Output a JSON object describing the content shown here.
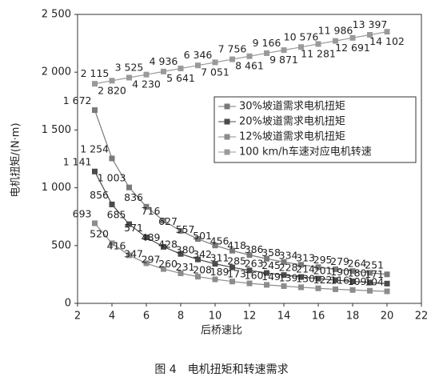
{
  "chart_data": {
    "type": "line",
    "caption": "图 4　电机扭矩和转速需求",
    "x_label": "后桥速比",
    "y_label": "电机扭矩/(N·m)",
    "x": [
      3,
      4,
      5,
      6,
      7,
      8,
      9,
      10,
      11,
      12,
      13,
      14,
      15,
      16,
      17,
      18,
      19,
      20
    ],
    "xlim": [
      2,
      22
    ],
    "xticks": [
      2,
      4,
      6,
      8,
      10,
      12,
      14,
      16,
      18,
      20,
      22
    ],
    "ylim": [
      0,
      2500
    ],
    "yticks": [
      0,
      500,
      {
        "value": 1000,
        "label": "1 000"
      },
      {
        "value": 1500,
        "label": "1 500"
      },
      {
        "value": 2000,
        "label": "2 000"
      },
      {
        "value": 2500,
        "label": "2 500"
      }
    ],
    "y2lim": [
      -48500,
      18100
    ],
    "legend_position": "right",
    "series": [
      {
        "name": "30%坡道需求电机扭矩",
        "color": "#7a7a7a",
        "values": [
          1672,
          1254,
          1003,
          836,
          716,
          627,
          557,
          501,
          456,
          418,
          386,
          358,
          334,
          313,
          295,
          279,
          264,
          251
        ],
        "value_labels": [
          "1 672",
          "1 254",
          "1 003",
          "836",
          "716",
          "627",
          "557",
          "501",
          "456",
          "418",
          "386",
          "358",
          "334",
          "313",
          "295",
          "279",
          "264",
          "251"
        ]
      },
      {
        "name": "20%坡道需求电机扭矩",
        "color": "#4a4a4a",
        "values": [
          1141,
          856,
          685,
          571,
          489,
          428,
          380,
          342,
          311,
          285,
          263,
          245,
          228,
          214,
          201,
          190,
          180,
          171
        ],
        "value_labels": [
          "1 141",
          "856",
          "685",
          "571",
          "489",
          "428",
          "380",
          "342",
          "311",
          "285",
          "263",
          "245",
          "228",
          "214",
          "201",
          "190",
          "180",
          "171"
        ]
      },
      {
        "name": "12%坡道需求电机扭矩",
        "color": "#8c8c8c",
        "values": [
          693,
          520,
          416,
          347,
          297,
          260,
          231,
          208,
          189,
          173,
          160,
          149,
          139,
          130,
          122,
          116,
          109,
          104
        ],
        "value_labels": [
          "693",
          "520",
          "416",
          "347",
          "297",
          "260",
          "231",
          "208",
          "189",
          "173",
          "160",
          "149",
          "139",
          "130",
          "122",
          "116",
          "109",
          "104"
        ]
      },
      {
        "name": "100 km/h车速对应电机转速",
        "color": "#9a9a9a",
        "axis": "y2",
        "values": [
          2115,
          2820,
          3525,
          4230,
          4936,
          5641,
          6346,
          7051,
          7756,
          8461,
          9166,
          9871,
          10576,
          11281,
          11986,
          12691,
          13397,
          14102
        ],
        "value_labels": [
          "2 115",
          "2 820",
          "3 525",
          "4 230",
          "4 936",
          "5 641",
          "6 346",
          "7 051",
          "7 756",
          "8 461",
          "9 166",
          "9 871",
          "10 576",
          "11 281",
          "11 986",
          "12 691",
          "13 397",
          "14 102"
        ]
      }
    ]
  }
}
